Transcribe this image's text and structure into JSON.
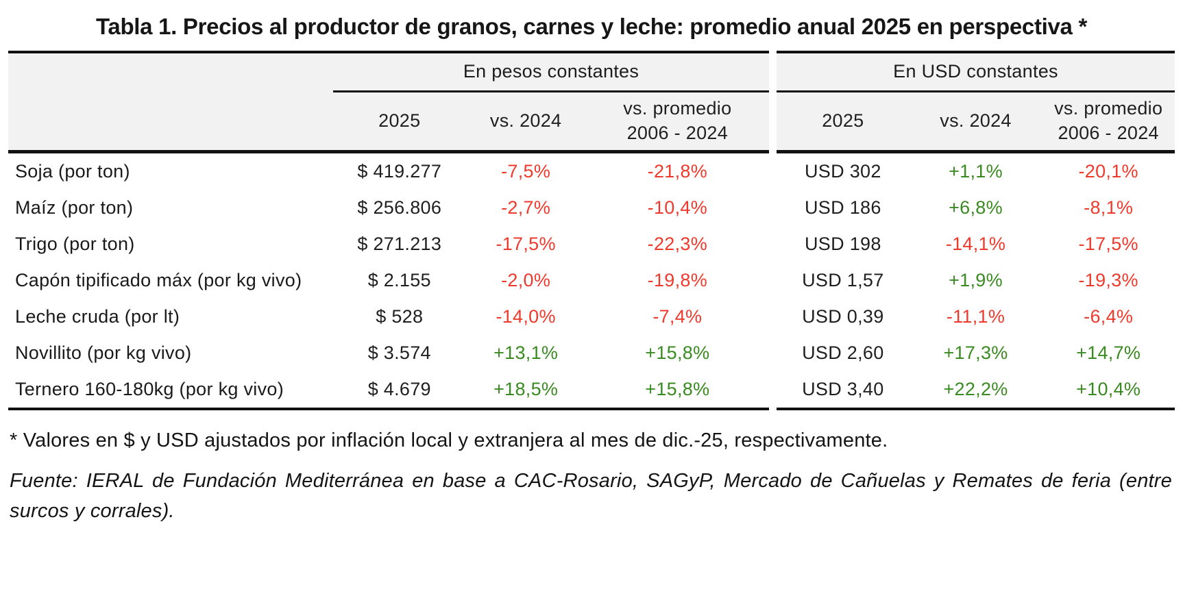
{
  "title": "Tabla 1. Precios al productor de granos, carnes y leche: promedio anual 2025 en perspectiva *",
  "colors": {
    "positive": "#3a8a22",
    "negative": "#ee3a2c",
    "header_bg": "#f2f2f2",
    "border": "#111111",
    "text": "#1f1f1f"
  },
  "table": {
    "groups": [
      {
        "label": "En pesos constantes",
        "columns": [
          {
            "line1": "2025",
            "line2": ""
          },
          {
            "line1": "vs. 2024",
            "line2": ""
          },
          {
            "line1": "vs. promedio",
            "line2": "2006 - 2024"
          }
        ]
      },
      {
        "label": "En USD constantes",
        "columns": [
          {
            "line1": "2025",
            "line2": ""
          },
          {
            "line1": "vs. 2024",
            "line2": ""
          },
          {
            "line1": "vs. promedio",
            "line2": "2006 - 2024"
          }
        ]
      }
    ],
    "rows": [
      {
        "label": "Soja (por ton)",
        "pesos": {
          "v2025": "$ 419.277",
          "vs2024": "-7,5%",
          "vsprom": "-21,8%"
        },
        "usd": {
          "v2025": "USD 302",
          "vs2024": "+1,1%",
          "vsprom": "-20,1%"
        }
      },
      {
        "label": "Maíz (por ton)",
        "pesos": {
          "v2025": "$ 256.806",
          "vs2024": "-2,7%",
          "vsprom": "-10,4%"
        },
        "usd": {
          "v2025": "USD 186",
          "vs2024": "+6,8%",
          "vsprom": "-8,1%"
        }
      },
      {
        "label": "Trigo (por ton)",
        "pesos": {
          "v2025": "$ 271.213",
          "vs2024": "-17,5%",
          "vsprom": "-22,3%"
        },
        "usd": {
          "v2025": "USD 198",
          "vs2024": "-14,1%",
          "vsprom": "-17,5%"
        }
      },
      {
        "label": "Capón tipificado máx (por kg vivo)",
        "pesos": {
          "v2025": "$ 2.155",
          "vs2024": "-2,0%",
          "vsprom": "-19,8%"
        },
        "usd": {
          "v2025": "USD 1,57",
          "vs2024": "+1,9%",
          "vsprom": "-19,3%"
        }
      },
      {
        "label": "Leche cruda (por lt)",
        "pesos": {
          "v2025": "$ 528",
          "vs2024": "-14,0%",
          "vsprom": "-7,4%"
        },
        "usd": {
          "v2025": "USD 0,39",
          "vs2024": "-11,1%",
          "vsprom": "-6,4%"
        }
      },
      {
        "label": "Novillito (por kg vivo)",
        "pesos": {
          "v2025": "$ 3.574",
          "vs2024": "+13,1%",
          "vsprom": "+15,8%"
        },
        "usd": {
          "v2025": "USD 2,60",
          "vs2024": "+17,3%",
          "vsprom": "+14,7%"
        }
      },
      {
        "label": "Ternero 160-180kg (por kg vivo)",
        "pesos": {
          "v2025": "$ 4.679",
          "vs2024": "+18,5%",
          "vsprom": "+15,8%"
        },
        "usd": {
          "v2025": "USD 3,40",
          "vs2024": "+22,2%",
          "vsprom": "+10,4%"
        }
      }
    ]
  },
  "footnotes": {
    "asterisk": "* Valores en $ y USD ajustados por inflación local y extranjera al mes de dic.-25, respectivamente.",
    "source": "Fuente: IERAL de Fundación Mediterránea en base a CAC-Rosario, SAGyP, Mercado de Cañuelas y Remates de feria (entre surcos y corrales)."
  }
}
